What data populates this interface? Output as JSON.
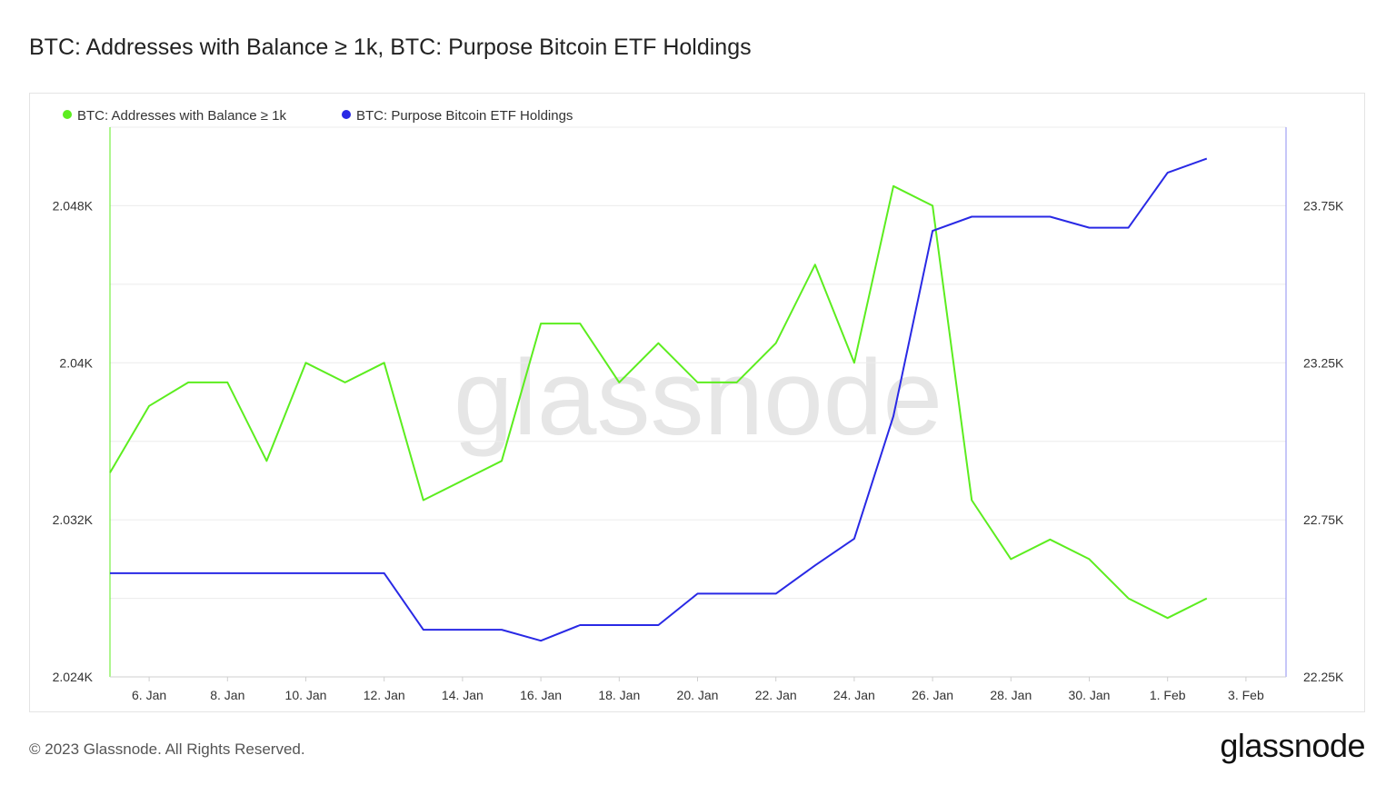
{
  "chart_data": {
    "type": "line",
    "title": "BTC: Addresses with Balance ≥ 1k, BTC: Purpose Bitcoin ETF Holdings",
    "x": [
      "5. Jan",
      "6. Jan",
      "7. Jan",
      "8. Jan",
      "9. Jan",
      "10. Jan",
      "11. Jan",
      "12. Jan",
      "13. Jan",
      "14. Jan",
      "15. Jan",
      "16. Jan",
      "17. Jan",
      "18. Jan",
      "19. Jan",
      "20. Jan",
      "21. Jan",
      "22. Jan",
      "23. Jan",
      "24. Jan",
      "25. Jan",
      "26. Jan",
      "27. Jan",
      "28. Jan",
      "29. Jan",
      "30. Jan",
      "31. Jan",
      "1. Feb",
      "2. Feb"
    ],
    "x_tick_labels": [
      "6. Jan",
      "8. Jan",
      "10. Jan",
      "12. Jan",
      "14. Jan",
      "16. Jan",
      "18. Jan",
      "20. Jan",
      "22. Jan",
      "24. Jan",
      "26. Jan",
      "28. Jan",
      "30. Jan",
      "1. Feb",
      "3. Feb"
    ],
    "y_left_tick_labels": [
      "2.024K",
      "2.032K",
      "2.04K",
      "2.048K"
    ],
    "y_right_tick_labels": [
      "22.25K",
      "22.75K",
      "23.25K",
      "23.75K"
    ],
    "y_left_lim": [
      2024,
      2052
    ],
    "y_right_lim": [
      22250,
      24000
    ],
    "grid": true,
    "legend_placement": "top-left",
    "series": [
      {
        "name": "BTC: Addresses with Balance ≥ 1k",
        "axis": "left",
        "color": "#5ced1f",
        "values": [
          2034.4,
          2037.8,
          2039.0,
          2039.0,
          2035.0,
          2040.0,
          2039.0,
          2040.0,
          2033.0,
          2034.0,
          2035.0,
          2042.0,
          2042.0,
          2039.0,
          2041.0,
          2039.0,
          2039.0,
          2041.0,
          2045.0,
          2040.0,
          2049.0,
          2048.0,
          2033.0,
          2030.0,
          2031.0,
          2030.0,
          2028.0,
          2027.0,
          2028.0
        ]
      },
      {
        "name": "BTC: Purpose Bitcoin ETF Holdings",
        "axis": "right",
        "color": "#2929e5",
        "values": [
          22580,
          22580,
          22580,
          22580,
          22580,
          22580,
          22580,
          22580,
          22400,
          22400,
          22400,
          22365,
          22415,
          22415,
          22415,
          22515,
          22515,
          22515,
          22605,
          22690,
          23080,
          23670,
          23715,
          23715,
          23715,
          23680,
          23680,
          23855,
          23900
        ]
      }
    ],
    "watermark": "glassnode"
  },
  "footer": {
    "copyright": "© 2023 Glassnode. All Rights Reserved.",
    "logo": "glassnode"
  }
}
